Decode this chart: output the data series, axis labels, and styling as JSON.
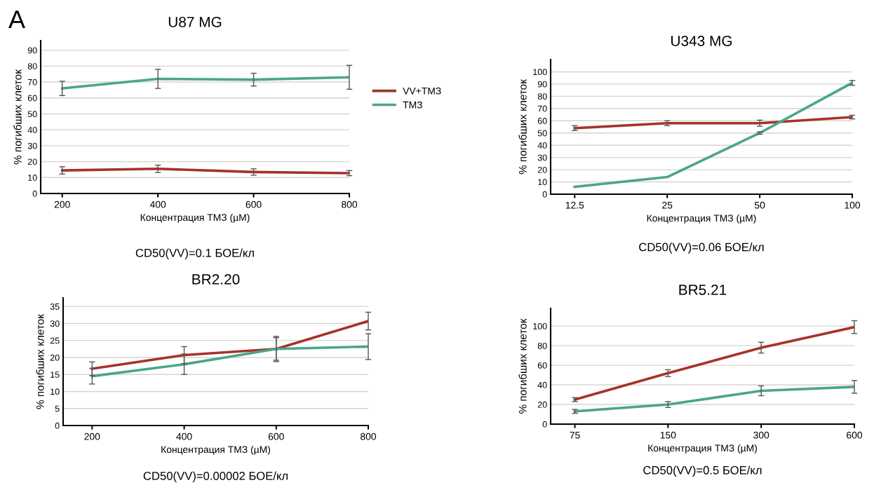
{
  "chart_data": [
    {
      "type": "line",
      "title": "U87 MG",
      "xlabel": "Концентрация ТМЗ (µM)",
      "ylabel": "% погибших клеток",
      "x": [
        200,
        400,
        600,
        800
      ],
      "xlim": [
        155,
        800
      ],
      "xticks": [
        200,
        400,
        600,
        800
      ],
      "ylim": [
        0,
        96
      ],
      "yticks": [
        0,
        10,
        20,
        30,
        40,
        50,
        60,
        70,
        80,
        90
      ],
      "grid": "y",
      "legend": "right",
      "annotations": [
        "A",
        "CD50(VV)=0.1 БОЕ/кл"
      ],
      "series": [
        {
          "name": "VV+TМЗ",
          "color": "#a5332a",
          "values": [
            14.5,
            15.5,
            13.5,
            12.8
          ],
          "errors": [
            2.3,
            2.3,
            2,
            1.6
          ]
        },
        {
          "name": "ТМЗ",
          "color": "#4aa68a",
          "values": [
            66,
            72,
            71.5,
            73
          ],
          "errors": [
            4.5,
            6,
            4,
            7.5
          ]
        }
      ]
    },
    {
      "type": "line",
      "title": "U343 MG",
      "xlabel": "Концентрация ТМЗ (µM)",
      "ylabel": "% погибших клеток",
      "categories": [
        "12.5",
        "25",
        "50",
        "100"
      ],
      "ylim": [
        0,
        110
      ],
      "yticks": [
        0,
        10,
        20,
        30,
        40,
        50,
        60,
        70,
        80,
        90,
        100
      ],
      "grid": "y",
      "annotations": [
        "CD50(VV)=0.06 БОЕ/кл"
      ],
      "series": [
        {
          "color": "#a5332a",
          "values": [
            54,
            58,
            58,
            63
          ],
          "errors": [
            2,
            2,
            2.5,
            1.5
          ]
        },
        {
          "color": "#4aa68a",
          "values": [
            6,
            14,
            50,
            91
          ],
          "errors": [
            null,
            null,
            1,
            2
          ]
        }
      ]
    },
    {
      "type": "line",
      "title": "BR2.20",
      "xlabel": "Концентрация ТМЗ (µM)",
      "ylabel": "% погибших клеток",
      "x": [
        200,
        400,
        600,
        800
      ],
      "xlim": [
        137,
        800
      ],
      "xticks": [
        200,
        400,
        600,
        800
      ],
      "ylim": [
        0,
        37.5
      ],
      "yticks": [
        0,
        5,
        10,
        15,
        20,
        25,
        30,
        35
      ],
      "grid": "y",
      "annotations": [
        "CD50(VV)=0.00002 БОЕ/кл"
      ],
      "series": [
        {
          "color": "#a5332a",
          "values": [
            16.7,
            20.7,
            22.5,
            30.7
          ],
          "errors": [
            2,
            2.5,
            3.3,
            2.6
          ]
        },
        {
          "color": "#4aa68a",
          "values": [
            14.5,
            18,
            22.5,
            23.2
          ],
          "errors": [
            2.3,
            3,
            3.7,
            3.8
          ]
        }
      ]
    },
    {
      "type": "line",
      "title": "BR5.21",
      "xlabel": "Концентрация ТМЗ (µM)",
      "ylabel": "% погибших клеток",
      "categories": [
        "75",
        "150",
        "300",
        "600"
      ],
      "ylim": [
        0,
        118
      ],
      "yticks": [
        0,
        20,
        40,
        60,
        80,
        100
      ],
      "grid": "y",
      "annotations": [
        "CD50(VV)=0.5 БОЕ/кл"
      ],
      "series": [
        {
          "color": "#a5332a",
          "values": [
            25,
            52,
            78,
            99
          ],
          "errors": [
            2,
            3.5,
            5.5,
            6.5
          ]
        },
        {
          "color": "#4aa68a",
          "values": [
            13,
            20,
            34,
            38
          ],
          "errors": [
            2,
            3,
            5,
            6.5
          ]
        }
      ]
    }
  ]
}
